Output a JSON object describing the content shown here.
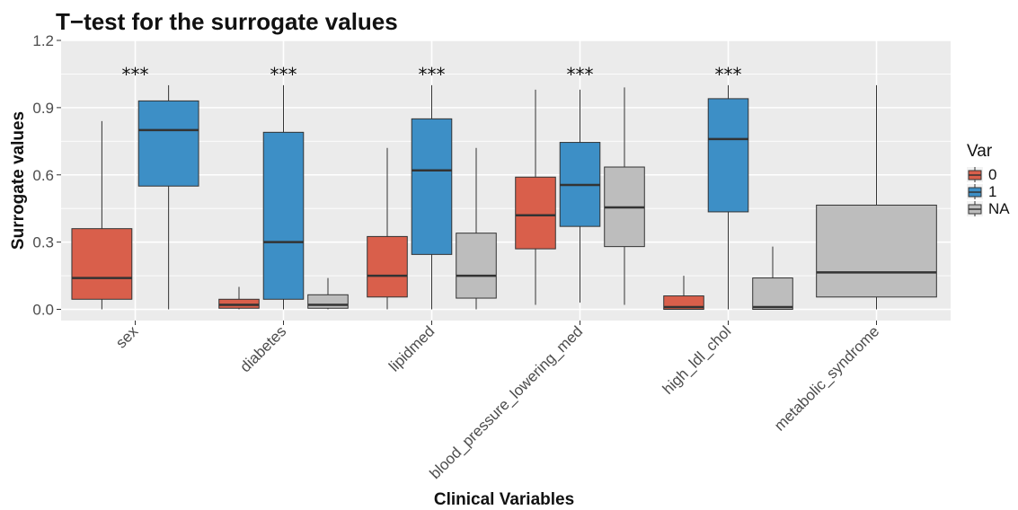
{
  "chart_data": {
    "type": "box",
    "title": "T−test for the surrogate values",
    "xlabel": "Clinical Variables",
    "ylabel": "Surrogate values",
    "ylim": [
      -0.05,
      1.2
    ],
    "yticks": [
      0.0,
      0.3,
      0.6,
      0.9,
      1.2
    ],
    "ytick_labels": [
      "0.0",
      "0.3",
      "0.6",
      "0.9",
      "1.2"
    ],
    "grid": true,
    "legend": {
      "title": "Var",
      "position": "right",
      "entries": [
        "0",
        "1",
        "NA"
      ]
    },
    "colors": {
      "0": "#d95f4b",
      "1": "#3d8fc6",
      "NA": "#bdbdbd",
      "panel": "#ebebeb"
    },
    "categories": [
      "sex",
      "diabetes",
      "lipidmed",
      "blood_pressure_lowering_med",
      "high_ldl_chol",
      "metabolic_syndrome"
    ],
    "significance": [
      "***",
      "***",
      "***",
      "***",
      "***",
      ""
    ],
    "groups": [
      {
        "category": "sex",
        "boxes": [
          {
            "var": "0",
            "whislo": 0.0,
            "q1": 0.045,
            "median": 0.14,
            "q3": 0.36,
            "whishi": 0.84
          },
          {
            "var": "1",
            "whislo": 0.0,
            "q1": 0.55,
            "median": 0.8,
            "q3": 0.93,
            "whishi": 1.0
          }
        ]
      },
      {
        "category": "diabetes",
        "boxes": [
          {
            "var": "0",
            "whislo": 0.0,
            "q1": 0.005,
            "median": 0.02,
            "q3": 0.045,
            "whishi": 0.1
          },
          {
            "var": "1",
            "whislo": 0.0,
            "q1": 0.045,
            "median": 0.3,
            "q3": 0.79,
            "whishi": 1.0
          },
          {
            "var": "NA",
            "whislo": 0.0,
            "q1": 0.005,
            "median": 0.02,
            "q3": 0.065,
            "whishi": 0.14
          }
        ]
      },
      {
        "category": "lipidmed",
        "boxes": [
          {
            "var": "0",
            "whislo": 0.0,
            "q1": 0.055,
            "median": 0.15,
            "q3": 0.325,
            "whishi": 0.72
          },
          {
            "var": "1",
            "whislo": 0.0,
            "q1": 0.245,
            "median": 0.62,
            "q3": 0.85,
            "whishi": 1.0
          },
          {
            "var": "NA",
            "whislo": 0.0,
            "q1": 0.05,
            "median": 0.15,
            "q3": 0.34,
            "whishi": 0.72
          }
        ]
      },
      {
        "category": "blood_pressure_lowering_med",
        "boxes": [
          {
            "var": "0",
            "whislo": 0.02,
            "q1": 0.27,
            "median": 0.42,
            "q3": 0.59,
            "whishi": 0.98
          },
          {
            "var": "1",
            "whislo": 0.03,
            "q1": 0.37,
            "median": 0.555,
            "q3": 0.745,
            "whishi": 0.98
          },
          {
            "var": "NA",
            "whislo": 0.02,
            "q1": 0.28,
            "median": 0.455,
            "q3": 0.635,
            "whishi": 0.99
          }
        ]
      },
      {
        "category": "high_ldl_chol",
        "boxes": [
          {
            "var": "0",
            "whislo": 0.0,
            "q1": 0.0,
            "median": 0.01,
            "q3": 0.06,
            "whishi": 0.15
          },
          {
            "var": "1",
            "whislo": 0.0,
            "q1": 0.435,
            "median": 0.76,
            "q3": 0.94,
            "whishi": 1.0
          },
          {
            "var": "NA",
            "whislo": 0.0,
            "q1": 0.0,
            "median": 0.01,
            "q3": 0.14,
            "whishi": 0.28
          }
        ]
      },
      {
        "category": "metabolic_syndrome",
        "boxes": [
          {
            "var": "NA",
            "whislo": 0.0,
            "q1": 0.055,
            "median": 0.165,
            "q3": 0.465,
            "whishi": 1.0
          }
        ]
      }
    ]
  }
}
